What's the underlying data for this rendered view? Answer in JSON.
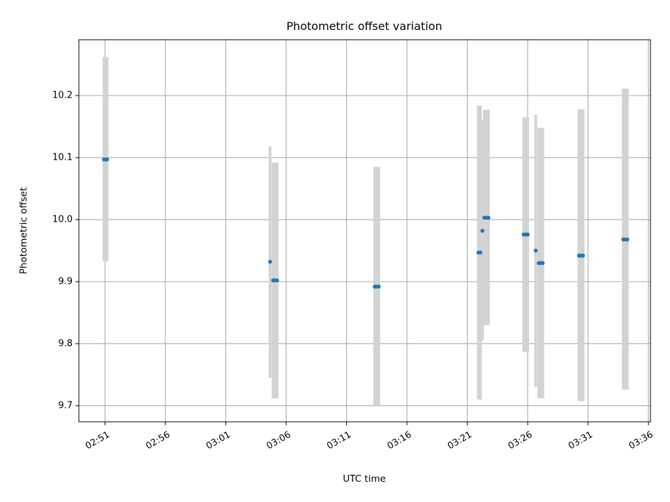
{
  "chart_data": {
    "type": "scatter",
    "title": "Photometric offset variation",
    "xlabel": "UTC time",
    "ylabel": "Photometric offset",
    "grid": true,
    "xlim": [
      "02:48:50",
      "03:36:10"
    ],
    "ylim": [
      9.674,
      10.29
    ],
    "x_ticks": [
      "02:51",
      "02:56",
      "03:01",
      "03:06",
      "03:11",
      "03:16",
      "03:21",
      "03:26",
      "03:31",
      "03:36"
    ],
    "y_ticks": [
      "9.7",
      "9.8",
      "9.9",
      "10.0",
      "10.1",
      "10.2"
    ],
    "colors": {
      "marker": "#1f77b4",
      "errorbar": "#d3d3d3",
      "grid": "#b0b0b0"
    },
    "series": [
      {
        "points": [
          {
            "t": "02:50:55",
            "y": 10.097,
            "lo": 9.933,
            "hi": 10.262
          },
          {
            "t": "02:51:05",
            "y": 10.097,
            "lo": 9.933,
            "hi": 10.262
          },
          {
            "t": "02:51:10",
            "y": 10.097,
            "lo": 9.933,
            "hi": 10.262
          },
          {
            "t": "03:04:40",
            "y": 9.932,
            "lo": 9.745,
            "hi": 10.118
          },
          {
            "t": "03:04:55",
            "y": 9.902,
            "lo": 9.712,
            "hi": 10.092
          },
          {
            "t": "03:05:05",
            "y": 9.902,
            "lo": 9.712,
            "hi": 10.092
          },
          {
            "t": "03:05:15",
            "y": 9.902,
            "lo": 9.712,
            "hi": 10.092
          },
          {
            "t": "03:13:20",
            "y": 9.892,
            "lo": 9.7,
            "hi": 10.085
          },
          {
            "t": "03:13:30",
            "y": 9.892,
            "lo": 9.7,
            "hi": 10.085
          },
          {
            "t": "03:13:40",
            "y": 9.892,
            "lo": 9.7,
            "hi": 10.085
          },
          {
            "t": "03:21:55",
            "y": 9.947,
            "lo": 9.71,
            "hi": 10.184
          },
          {
            "t": "03:22:05",
            "y": 9.947,
            "lo": 9.71,
            "hi": 10.184
          },
          {
            "t": "03:22:15",
            "y": 9.982,
            "lo": 9.805,
            "hi": 10.16
          },
          {
            "t": "03:22:25",
            "y": 10.003,
            "lo": 9.83,
            "hi": 10.177
          },
          {
            "t": "03:22:35",
            "y": 10.003,
            "lo": 9.83,
            "hi": 10.177
          },
          {
            "t": "03:22:45",
            "y": 10.003,
            "lo": 9.83,
            "hi": 10.177
          },
          {
            "t": "03:25:40",
            "y": 9.976,
            "lo": 9.787,
            "hi": 10.165
          },
          {
            "t": "03:25:50",
            "y": 9.976,
            "lo": 9.787,
            "hi": 10.165
          },
          {
            "t": "03:26:00",
            "y": 9.976,
            "lo": 9.787,
            "hi": 10.165
          },
          {
            "t": "03:26:40",
            "y": 9.95,
            "lo": 9.73,
            "hi": 10.169
          },
          {
            "t": "03:26:55",
            "y": 9.93,
            "lo": 9.712,
            "hi": 10.148
          },
          {
            "t": "03:27:05",
            "y": 9.93,
            "lo": 9.712,
            "hi": 10.148
          },
          {
            "t": "03:27:15",
            "y": 9.93,
            "lo": 9.712,
            "hi": 10.148
          },
          {
            "t": "03:30:15",
            "y": 9.942,
            "lo": 9.707,
            "hi": 10.178
          },
          {
            "t": "03:30:25",
            "y": 9.942,
            "lo": 9.707,
            "hi": 10.178
          },
          {
            "t": "03:30:35",
            "y": 9.942,
            "lo": 9.707,
            "hi": 10.178
          },
          {
            "t": "03:33:55",
            "y": 9.968,
            "lo": 9.726,
            "hi": 10.211
          },
          {
            "t": "03:34:05",
            "y": 9.968,
            "lo": 9.726,
            "hi": 10.211
          },
          {
            "t": "03:34:15",
            "y": 9.968,
            "lo": 9.726,
            "hi": 10.211
          }
        ]
      }
    ]
  }
}
